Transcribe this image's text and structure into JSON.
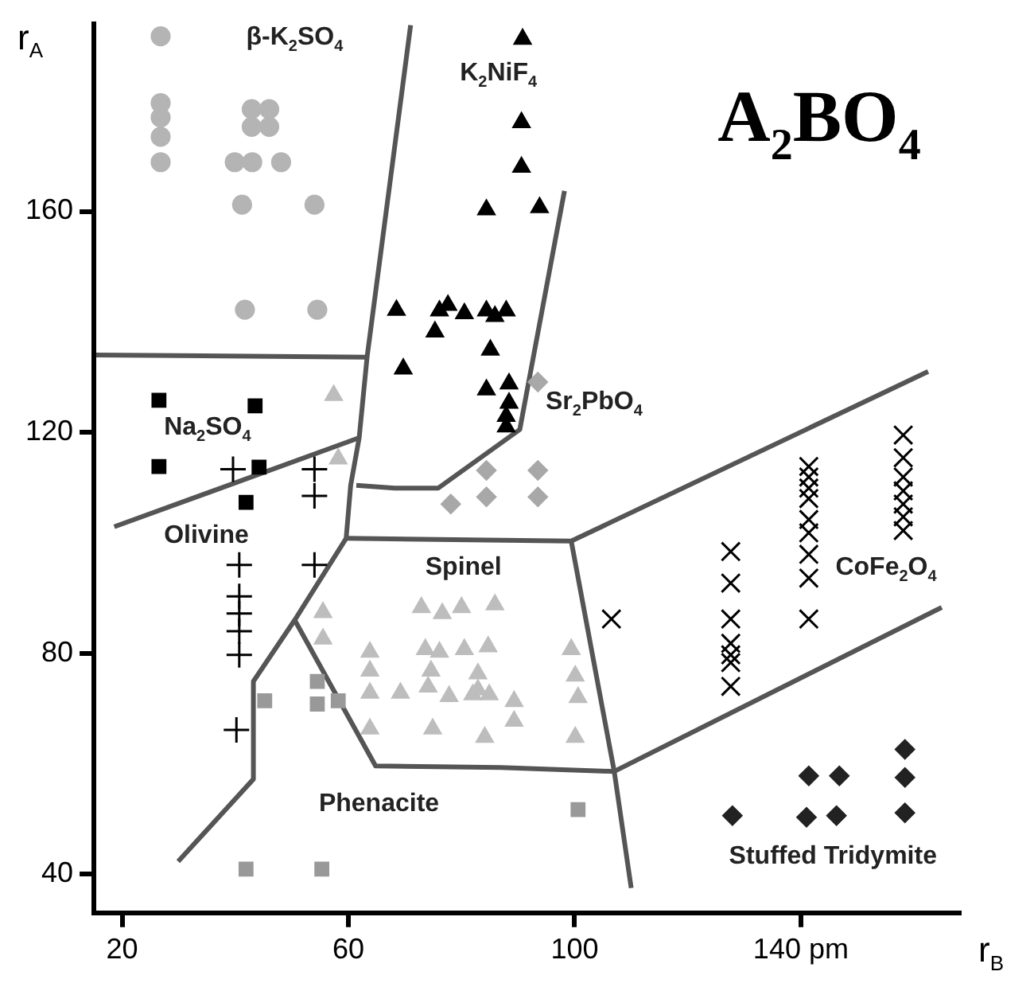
{
  "chart_data": {
    "type": "scatter",
    "title": "A$_{2}$BO$_{4}$",
    "xlabel": "r$_{B}$",
    "ylabel": "r$_{A}$",
    "xlim": [
      15,
      168
    ],
    "ylim": [
      33,
      194
    ],
    "xticks": [
      20,
      60,
      100,
      {
        "value": 140,
        "label": "140 pm"
      }
    ],
    "yticks": [
      40,
      80,
      120,
      160
    ],
    "grid": false,
    "legend": false,
    "series": [
      {
        "marker": "circle",
        "color": "#b4b4b4",
        "x": [
          26.8,
          26.8,
          26.8,
          26.8,
          26.8,
          42.9,
          46.0,
          42.9,
          46.0,
          39.9,
          43.0,
          48.1,
          41.2,
          54.0,
          41.7,
          54.5
        ],
        "values": [
          191.7,
          179.6,
          177.0,
          173.5,
          168.9,
          178.5,
          178.5,
          175.3,
          175.3,
          168.9,
          168.9,
          168.9,
          161.2,
          161.2,
          142.2,
          142.2
        ]
      },
      {
        "marker": "triangle",
        "color": "#000000",
        "x": [
          90.8,
          90.6,
          90.6,
          84.4,
          93.8,
          68.5,
          76.1,
          77.6,
          80.5,
          84.4,
          87.9,
          85.9,
          75.3,
          85.1,
          69.7,
          84.4,
          88.4,
          88.4,
          87.9,
          87.9
        ],
        "values": [
          191.2,
          176.1,
          168.0,
          160.3,
          160.7,
          142.1,
          142.0,
          143.0,
          141.5,
          142.0,
          142.0,
          141.0,
          138.2,
          134.9,
          131.5,
          127.7,
          128.8,
          125.3,
          122.9,
          121.0
        ]
      },
      {
        "marker": "triangle",
        "color": "#bdbdbd",
        "x": [
          57.4,
          58.2,
          55.5,
          55.5,
          63.8,
          63.8,
          63.8,
          63.8,
          69.2,
          72.9,
          76.6,
          80.0,
          85.9,
          73.6,
          76.1,
          80.5,
          84.7,
          74.6,
          74.1,
          77.8,
          82.9,
          82.9,
          82.0,
          84.9,
          89.3,
          89.3,
          74.9,
          84.1,
          99.4,
          100.1,
          100.6,
          100.1
        ],
        "values": [
          126.7,
          115.2,
          87.4,
          82.6,
          80.2,
          76.8,
          72.8,
          66.3,
          72.8,
          88.3,
          87.2,
          88.3,
          88.8,
          80.7,
          80.2,
          80.7,
          81.2,
          76.8,
          73.9,
          72.2,
          76.3,
          73.4,
          72.5,
          72.5,
          71.3,
          67.7,
          66.3,
          64.8,
          80.7,
          75.9,
          72.0,
          64.8
        ]
      },
      {
        "marker": "diamond",
        "color": "#a8a8a8",
        "x": [
          93.5,
          84.4,
          93.5,
          78.1,
          84.4,
          93.5
        ],
        "values": [
          129.1,
          113.1,
          113.1,
          107.0,
          108.3,
          108.3
        ]
      },
      {
        "marker": "square",
        "color": "#000000",
        "x": [
          26.5,
          43.5,
          26.5,
          44.2,
          41.9
        ],
        "values": [
          125.8,
          124.8,
          113.8,
          113.7,
          107.3
        ]
      },
      {
        "marker": "cross",
        "color": "#000000",
        "x": [
          39.6,
          54.0,
          54.0,
          40.7,
          54.0,
          40.7,
          40.7,
          40.7,
          40.7,
          40.2
        ],
        "values": [
          113.3,
          113.3,
          108.5,
          96.0,
          96.0,
          90.3,
          87.2,
          84.0,
          79.7,
          66.1
        ]
      },
      {
        "marker": "square",
        "color": "#999999",
        "x": [
          45.2,
          54.5,
          54.5,
          58.2,
          100.6,
          41.9,
          55.3
        ],
        "values": [
          71.4,
          74.9,
          70.8,
          71.4,
          51.7,
          40.9,
          40.9
        ]
      },
      {
        "marker": "x",
        "color": "#000000",
        "x": [
          106.5,
          127.6,
          127.6,
          127.6,
          127.6,
          127.6,
          127.6,
          127.6,
          141.4,
          141.4,
          141.4,
          141.4,
          141.4,
          141.4,
          141.4,
          141.4,
          141.4,
          158.1,
          158.1,
          158.1,
          158.1,
          158.1,
          158.1,
          158.1
        ],
        "values": [
          86.2,
          98.4,
          92.7,
          86.2,
          81.8,
          79.7,
          78.3,
          74.0,
          113.8,
          111.9,
          109.9,
          108.0,
          104.2,
          101.8,
          97.9,
          93.6,
          86.2,
          119.5,
          115.4,
          111.9,
          109.4,
          107.0,
          104.7,
          102.2
        ]
      },
      {
        "marker": "diamond",
        "color": "#222222",
        "x": [
          127.9,
          141.4,
          146.8,
          141.0,
          146.3,
          158.4,
          158.4,
          158.4
        ],
        "values": [
          50.6,
          57.8,
          57.8,
          50.3,
          50.6,
          62.6,
          57.5,
          51.1
        ]
      },
      {
        "type": "line",
        "marker": "none",
        "color": "#555555",
        "x": [
          15.4,
          63.3
        ],
        "values": [
          134.0,
          133.6
        ]
      },
      {
        "type": "line",
        "marker": "none",
        "color": "#555555",
        "x": [
          71.0,
          63.3,
          61.9,
          60.4,
          59.6,
          50.5,
          43.2,
          43.2,
          29.9
        ],
        "values": [
          193.7,
          133.6,
          119.0,
          110.4,
          100.8,
          86.0,
          74.9,
          57.2,
          42.3
        ]
      },
      {
        "type": "line",
        "marker": "none",
        "color": "#555555",
        "x": [
          18.6,
          61.9
        ],
        "values": [
          102.9,
          119.0
        ]
      },
      {
        "type": "line",
        "marker": "none",
        "color": "#555555",
        "x": [
          98.2,
          90.3,
          75.9,
          68.2,
          61.4
        ],
        "values": [
          163.7,
          120.5,
          109.9,
          109.9,
          110.4
        ]
      },
      {
        "type": "line",
        "marker": "none",
        "color": "#555555",
        "x": [
          59.6,
          99.4,
          162.5
        ],
        "values": [
          100.8,
          100.3,
          131.0
        ]
      },
      {
        "type": "line",
        "marker": "none",
        "color": "#555555",
        "x": [
          99.4,
          107.0,
          110.0
        ],
        "values": [
          100.3,
          58.6,
          37.5
        ]
      },
      {
        "type": "line",
        "marker": "none",
        "color": "#555555",
        "x": [
          107.0,
          164.9
        ],
        "values": [
          58.6,
          88.3
        ]
      },
      {
        "type": "line",
        "marker": "none",
        "color": "#555555",
        "x": [
          50.5,
          64.8,
          86.9,
          107.0
        ],
        "values": [
          86.0,
          59.6,
          59.3,
          58.6
        ]
      }
    ],
    "annotations": [
      "β-K$_{2}$SO$_{4}$",
      "K$_{2}$NiF$_{4}$",
      "Na$_{2}$SO$_{4}$",
      "Olivine",
      "Sr$_{2}$PbO$_{4}$",
      "Spinel",
      "CoFe$_{2}$O$_{4}$",
      "Phenacite",
      "Stuffed Tridymite"
    ]
  }
}
